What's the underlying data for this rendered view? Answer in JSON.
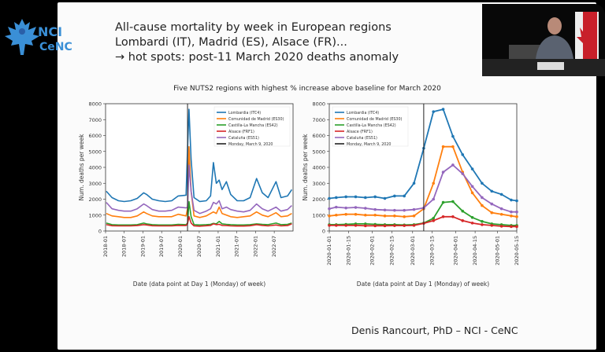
{
  "slide": {
    "title_lines": [
      "All-cause mortality by week in European regions",
      "Lombardi (IT), Madrid (ES), Alsace (FR)...",
      "→ hot spots: post-11 March 2020 deaths anomaly"
    ],
    "suptitle": "Five NUTS2 regions with highest % increase above baseline for March 2020",
    "footer": "Denis Rancourt, PhD  –  NCI - CeNC",
    "logo_text": [
      "NCI",
      "CeNC"
    ]
  },
  "colors": {
    "Lombardia": "#1f77b4",
    "Madrid": "#ff7f0e",
    "Castilla": "#2ca02c",
    "Alsace": "#d62728",
    "Cataluna": "#9467bd",
    "vline": "#222222"
  },
  "chart_data": [
    {
      "type": "line",
      "xlabel": "Date (data point at Day 1 (Monday) of week)",
      "ylabel": "Num. deaths per week",
      "ylim": [
        0,
        8000
      ],
      "yticks": [
        0,
        1000,
        2000,
        3000,
        4000,
        5000,
        6000,
        7000,
        8000
      ],
      "xlim": [
        "2018-01-01",
        "2022-12-31"
      ],
      "xticks": [
        "2018-01",
        "2018-07",
        "2019-01",
        "2019-07",
        "2020-01",
        "2020-07",
        "2021-01",
        "2021-07",
        "2022-01",
        "2022-07"
      ],
      "legend_position": "top-right",
      "markers": false,
      "vline": {
        "label": "Monday, March 9, 2020",
        "x": "2020-03-09"
      },
      "x": [
        "2018-01-08",
        "2018-03-05",
        "2018-05-07",
        "2018-07-02",
        "2018-09-03",
        "2018-11-05",
        "2019-01-07",
        "2019-02-04",
        "2019-04-01",
        "2019-06-03",
        "2019-08-05",
        "2019-10-07",
        "2019-12-09",
        "2020-02-24",
        "2020-03-09",
        "2020-03-23",
        "2020-04-13",
        "2020-05-11",
        "2020-07-06",
        "2020-09-07",
        "2020-10-19",
        "2020-11-16",
        "2020-12-14",
        "2021-01-11",
        "2021-02-08",
        "2021-03-22",
        "2021-05-03",
        "2021-07-05",
        "2021-09-06",
        "2021-11-08",
        "2022-01-10",
        "2022-03-07",
        "2022-05-02",
        "2022-07-18",
        "2022-09-05",
        "2022-11-07",
        "2022-12-19"
      ],
      "series": [
        {
          "name": "Lombardia (ITC4)",
          "color_key": "Lombardia",
          "values": [
            2500,
            2100,
            1900,
            1850,
            1900,
            2050,
            2400,
            2300,
            2000,
            1900,
            1850,
            1900,
            2200,
            2250,
            5200,
            7650,
            4500,
            2100,
            1850,
            1900,
            2200,
            4300,
            3000,
            3200,
            2600,
            3100,
            2300,
            1900,
            1900,
            2100,
            3300,
            2400,
            2100,
            3100,
            2100,
            2200,
            2600
          ]
        },
        {
          "name": "Comunidad de Madrid (ES30)",
          "color_key": "Madrid",
          "values": [
            1100,
            950,
            900,
            850,
            850,
            950,
            1200,
            1100,
            950,
            900,
            900,
            900,
            1050,
            950,
            1400,
            5300,
            2500,
            950,
            850,
            950,
            1100,
            1200,
            1100,
            1500,
            1100,
            1000,
            900,
            850,
            900,
            950,
            1200,
            1000,
            900,
            1150,
            900,
            950,
            1100
          ]
        },
        {
          "name": "Castilla-La Mancha (ES42)",
          "color_key": "Castilla",
          "values": [
            500,
            400,
            380,
            380,
            380,
            400,
            500,
            450,
            400,
            380,
            380,
            380,
            420,
            400,
            500,
            1850,
            900,
            400,
            380,
            400,
            420,
            480,
            450,
            600,
            450,
            420,
            400,
            380,
            380,
            400,
            450,
            420,
            400,
            500,
            400,
            420,
            500
          ]
        },
        {
          "name": "Alsace (FRF1)",
          "color_key": "Alsace",
          "values": [
            400,
            330,
            320,
            320,
            320,
            340,
            400,
            380,
            330,
            320,
            320,
            320,
            350,
            340,
            480,
            900,
            500,
            320,
            300,
            330,
            350,
            450,
            400,
            420,
            350,
            340,
            320,
            310,
            310,
            330,
            400,
            350,
            320,
            380,
            320,
            340,
            450
          ]
        },
        {
          "name": "Cataluña (ES51)",
          "color_key": "Cataluna",
          "values": [
            1800,
            1400,
            1300,
            1250,
            1250,
            1400,
            1700,
            1600,
            1350,
            1250,
            1250,
            1300,
            1500,
            1450,
            1500,
            4150,
            2500,
            1300,
            1100,
            1250,
            1400,
            1800,
            1700,
            1900,
            1400,
            1500,
            1350,
            1250,
            1200,
            1300,
            1700,
            1400,
            1250,
            1500,
            1250,
            1350,
            1600
          ]
        }
      ]
    },
    {
      "type": "line",
      "xlabel": "Date (data point at Day 1 (Monday) of week)",
      "ylabel": "Num. deaths per week",
      "ylim": [
        0,
        8000
      ],
      "yticks": [
        0,
        1000,
        2000,
        3000,
        4000,
        5000,
        6000,
        7000,
        8000
      ],
      "xlim": [
        "2020-01-01",
        "2020-05-15"
      ],
      "xticks": [
        "2020-01-01",
        "2020-01-15",
        "2020-02-01",
        "2020-02-15",
        "2020-03-01",
        "2020-03-15",
        "2020-04-01",
        "2020-04-15",
        "2020-05-01",
        "2020-05-15"
      ],
      "legend_position": "top-left",
      "markers": true,
      "vline": {
        "label": "Monday, March 9, 2020",
        "x": "2020-03-09"
      },
      "x": [
        "2020-01-01",
        "2020-01-06",
        "2020-01-13",
        "2020-01-20",
        "2020-01-27",
        "2020-02-03",
        "2020-02-10",
        "2020-02-17",
        "2020-02-24",
        "2020-03-02",
        "2020-03-09",
        "2020-03-16",
        "2020-03-23",
        "2020-03-30",
        "2020-04-06",
        "2020-04-13",
        "2020-04-20",
        "2020-04-27",
        "2020-05-04",
        "2020-05-11",
        "2020-05-15"
      ],
      "series": [
        {
          "name": "Lombardia (ITC4)",
          "color_key": "Lombardia",
          "values": [
            2050,
            2100,
            2150,
            2150,
            2100,
            2150,
            2050,
            2200,
            2200,
            3000,
            5200,
            7500,
            7650,
            5950,
            4800,
            3900,
            3000,
            2500,
            2300,
            1950,
            1900
          ]
        },
        {
          "name": "Comunidad de Madrid (ES30)",
          "color_key": "Madrid",
          "values": [
            950,
            1000,
            1050,
            1050,
            1000,
            1000,
            950,
            950,
            900,
            950,
            1400,
            3000,
            5300,
            5300,
            3700,
            2400,
            1600,
            1150,
            1050,
            950,
            900
          ]
        },
        {
          "name": "Castilla-La Mancha (ES42)",
          "color_key": "Castilla",
          "values": [
            400,
            400,
            420,
            450,
            450,
            420,
            400,
            400,
            380,
            400,
            500,
            800,
            1800,
            1850,
            1250,
            850,
            600,
            450,
            400,
            350,
            350
          ]
        },
        {
          "name": "Alsace (FRF1)",
          "color_key": "Alsace",
          "values": [
            350,
            350,
            350,
            350,
            330,
            330,
            330,
            340,
            340,
            350,
            480,
            650,
            900,
            900,
            650,
            500,
            400,
            350,
            300,
            280,
            280
          ]
        },
        {
          "name": "Cataluña (ES51)",
          "color_key": "Cataluna",
          "values": [
            1400,
            1500,
            1450,
            1480,
            1430,
            1350,
            1320,
            1300,
            1300,
            1350,
            1450,
            2000,
            3700,
            4150,
            3600,
            2800,
            2100,
            1700,
            1400,
            1200,
            1200
          ]
        }
      ]
    }
  ]
}
